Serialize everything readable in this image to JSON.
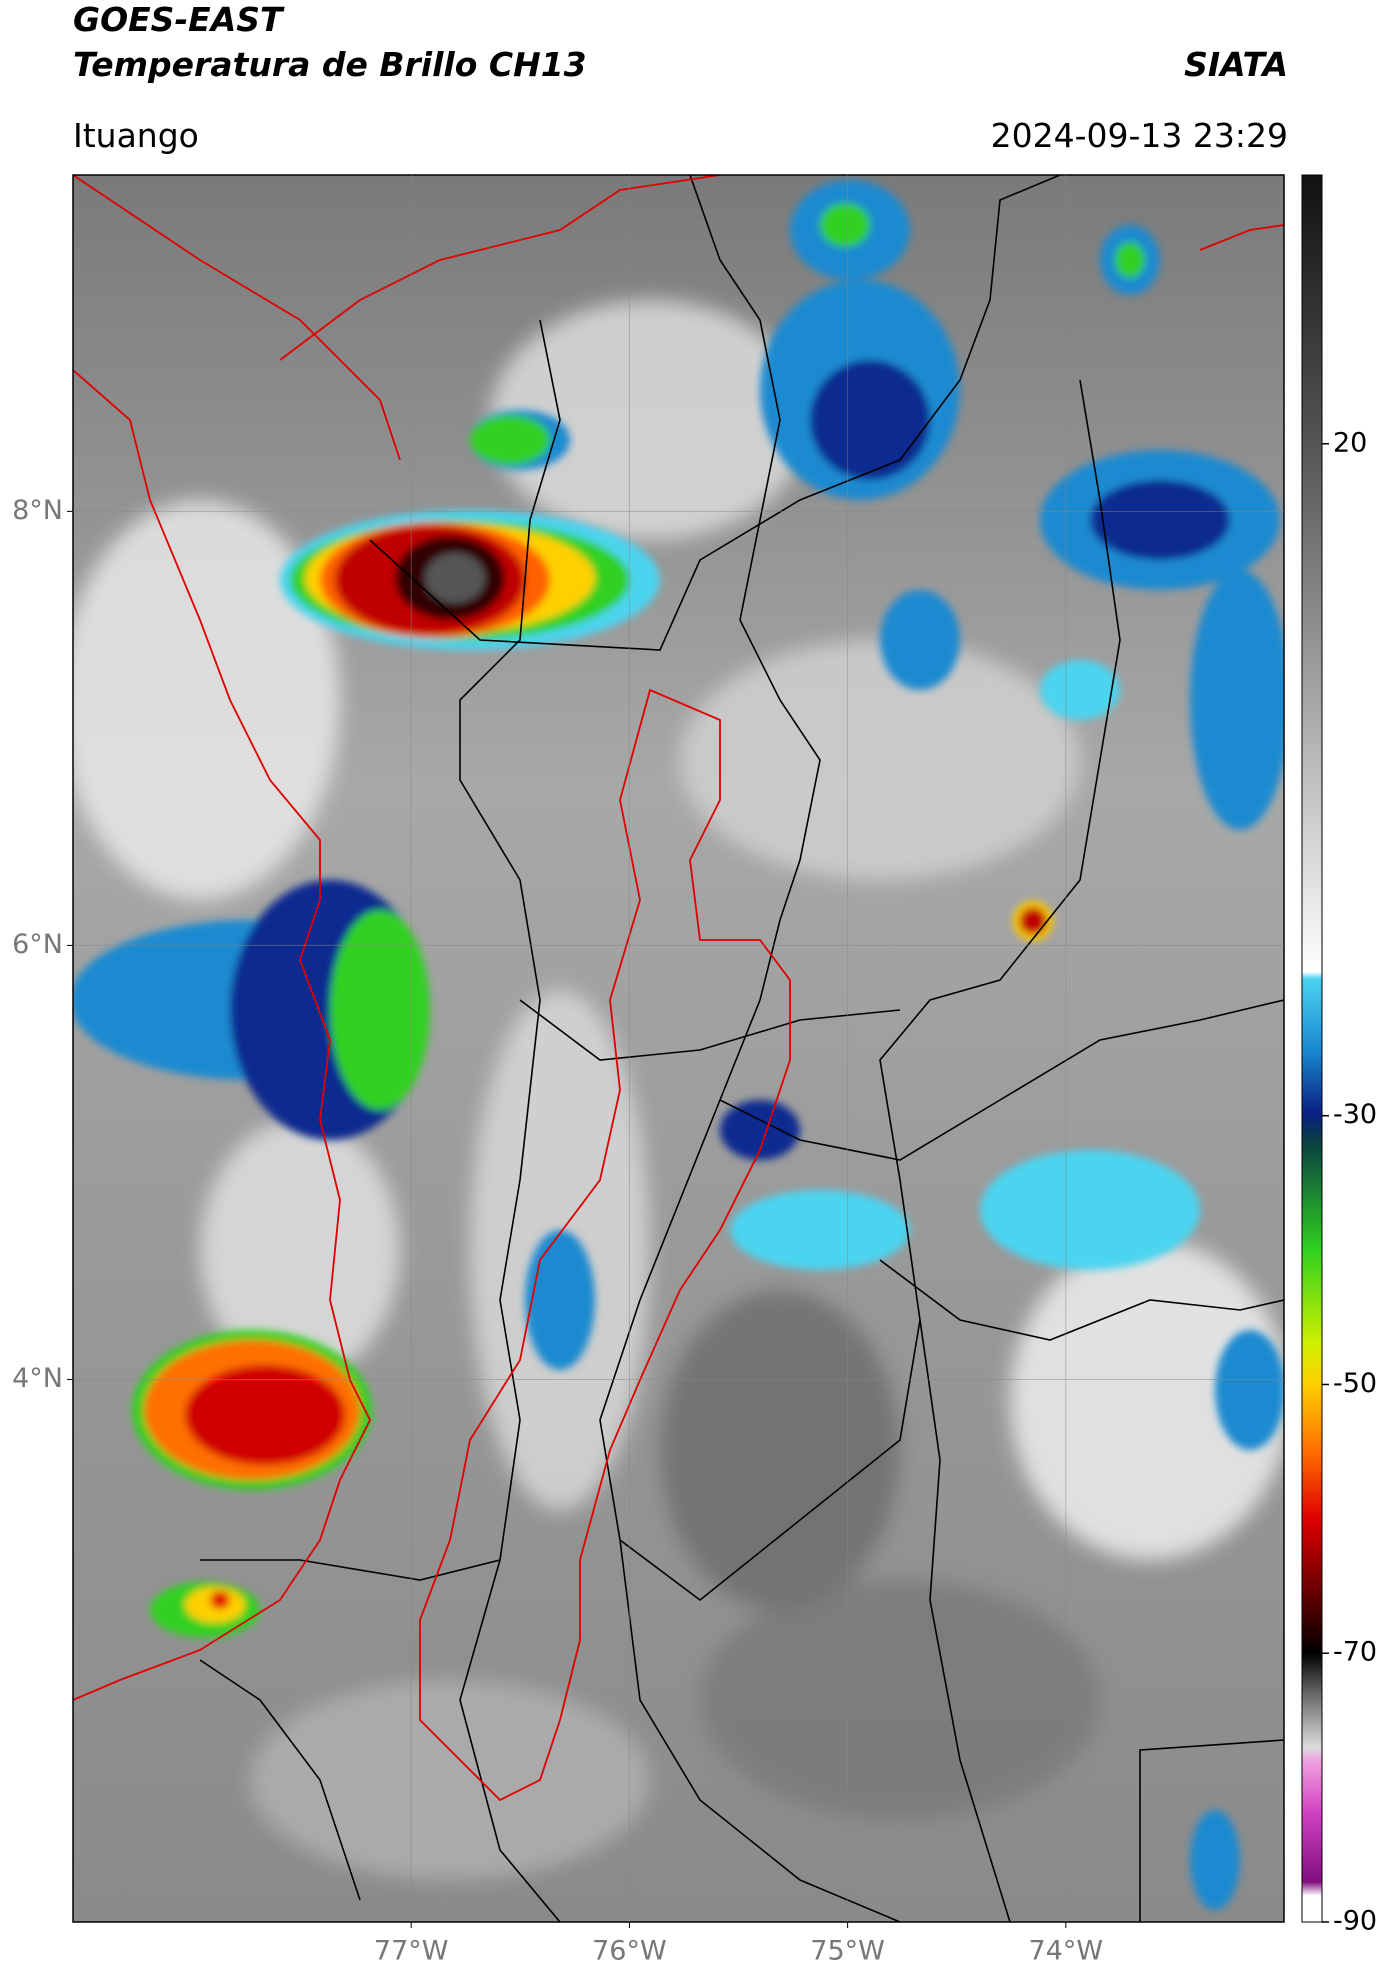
{
  "header": {
    "title": "GOES-EAST",
    "subtitle": "Temperatura de Brillo CH13",
    "source": "SIATA",
    "region": "Ituango",
    "datetime": "2024-09-13 23:29"
  },
  "map": {
    "xlim": [
      -78.55,
      -73.0
    ],
    "ylim": [
      1.5,
      9.55
    ],
    "xticks": [
      {
        "value": -77,
        "label": "77°W"
      },
      {
        "value": -76,
        "label": "76°W"
      },
      {
        "value": -75,
        "label": "75°W"
      },
      {
        "value": -74,
        "label": "74°W"
      }
    ],
    "yticks": [
      {
        "value": 8,
        "label": "8°N"
      },
      {
        "value": 6,
        "label": "6°N"
      },
      {
        "value": 4,
        "label": "4°N"
      }
    ]
  },
  "colorbar": {
    "lim": [
      -90,
      40
    ],
    "ticks": [
      20,
      -30,
      -50,
      -70,
      -90
    ]
  }
}
